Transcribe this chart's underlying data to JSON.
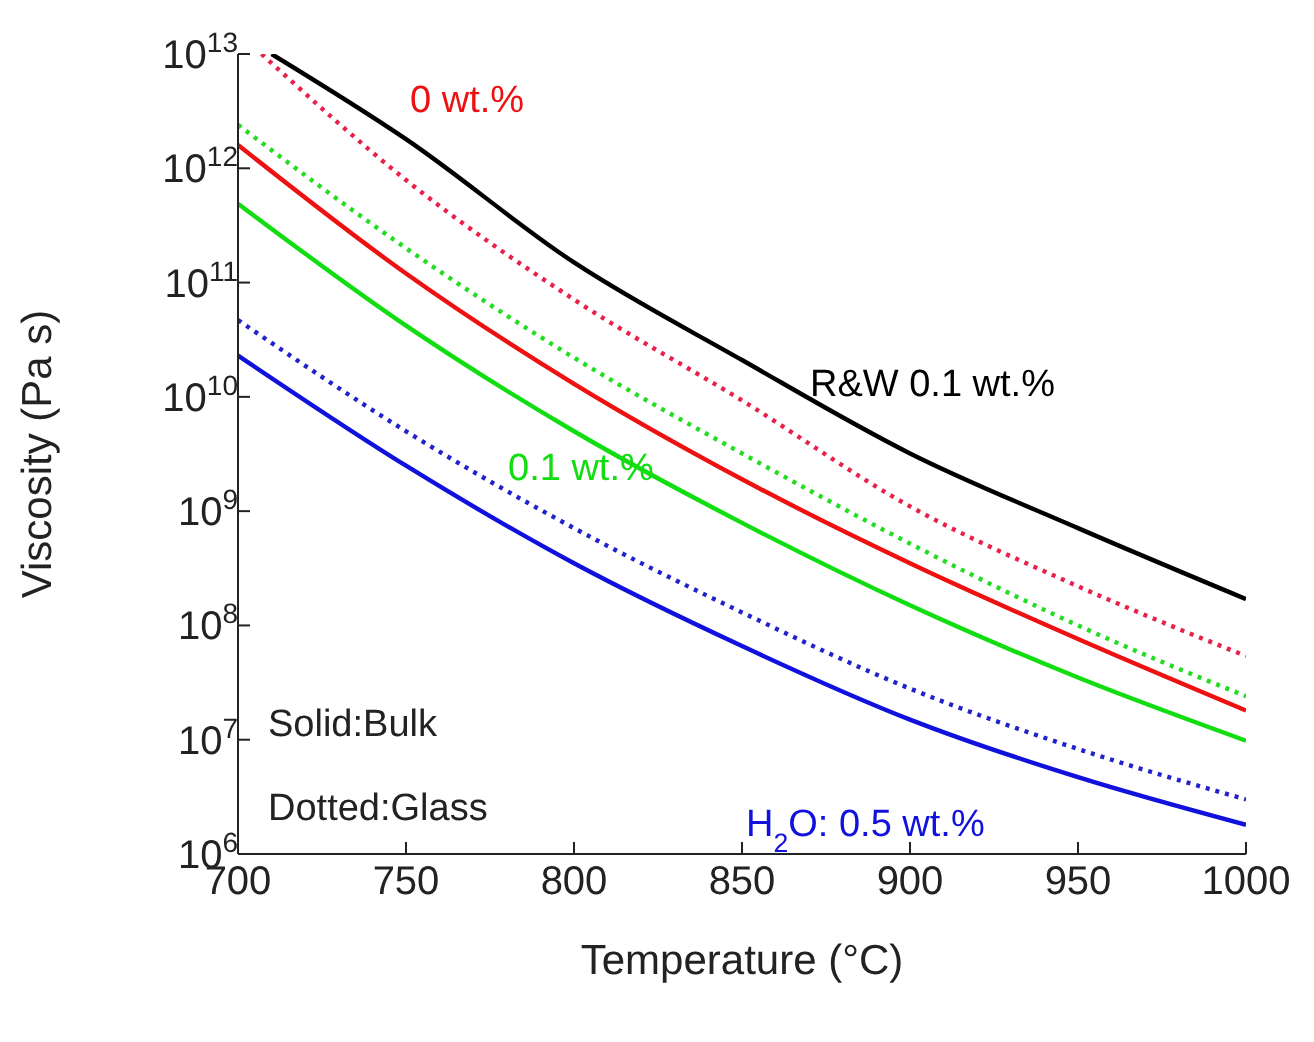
{
  "chart_data": {
    "type": "line",
    "xlabel": "Temperature (°C)",
    "ylabel": "Viscosity (Pa s)",
    "log": "y",
    "xlim": [
      700,
      1000
    ],
    "xticks": [
      700,
      750,
      800,
      850,
      900,
      950,
      1000
    ],
    "ylim": [
      1000000.0,
      10000000000000.0
    ],
    "yticks": [
      {
        "value": 1000000.0,
        "label": "10$^{6}$"
      },
      {
        "value": 10000000.0,
        "label": "10$^{7}$"
      },
      {
        "value": 100000000.0,
        "label": "10$^{8}$"
      },
      {
        "value": 1000000000.0,
        "label": "10$^{9}$"
      },
      {
        "value": 10000000000.0,
        "label": "10$^{10}$"
      },
      {
        "value": 100000000000.0,
        "label": "10$^{11}$"
      },
      {
        "value": 1000000000000.0,
        "label": "10$^{12}$"
      },
      {
        "value": 10000000000000.0,
        "label": "10$^{13}$"
      }
    ],
    "marker": "none",
    "series": [
      {
        "color": "#000000",
        "line_style": "solid",
        "x": [
          710,
          750,
          800,
          850,
          900,
          950,
          1000
        ],
        "values": [
          10000000000000.0,
          1800000000000.0,
          150000000000.0,
          21000000000.0,
          3200000000.0,
          710000000.0,
          170000000.0
        ]
      },
      {
        "color": "#e8204a",
        "line_style": "dotted",
        "x": [
          707,
          750,
          800,
          850,
          900,
          950,
          1000
        ],
        "values": [
          10000000000000.0,
          790000000000.0,
          71000000000.0,
          9300000000.0,
          1100000000.0,
          220000000.0,
          54000000.0
        ]
      },
      {
        "color": "#22dd22",
        "line_style": "dotted",
        "x": [
          700,
          750,
          800,
          850,
          900,
          950,
          1000
        ],
        "values": [
          2400000000000.0,
          200000000000.0,
          22000000000.0,
          3200000000.0,
          520000000.0,
          100000000.0,
          24000000.0
        ]
      },
      {
        "color": "#ee1111",
        "line_style": "solid",
        "x": [
          700,
          750,
          800,
          850,
          900,
          950,
          1000
        ],
        "values": [
          1600000000000.0,
          120000000000.0,
          13000000000.0,
          1900000000.0,
          350000000.0,
          76000000.0,
          18000000.0
        ]
      },
      {
        "color": "#11dd11",
        "line_style": "solid",
        "x": [
          700,
          750,
          800,
          850,
          900,
          950,
          1000
        ],
        "values": [
          490000000000.0,
          42000000000.0,
          5000000000.0,
          790000000.0,
          150000000.0,
          35000000.0,
          9800000.0
        ]
      },
      {
        "color": "#2222cc",
        "line_style": "dotted",
        "x": [
          700,
          750,
          800,
          850,
          900,
          950,
          1000
        ],
        "values": [
          47000000000.0,
          5000000000.0,
          710000000.0,
          130000000.0,
          28000000.0,
          8300000.0,
          3000000.0
        ]
      },
      {
        "color": "#1111dd",
        "line_style": "solid",
        "x": [
          700,
          750,
          800,
          850,
          900,
          950,
          1000
        ],
        "values": [
          23000000000.0,
          2500000000.0,
          350000000.0,
          66000000.0,
          15000000.0,
          4700000.0,
          1800000.0
        ]
      }
    ],
    "annotations": [
      "0 wt.%",
      "R&W 0.1 wt.%",
      "0.1 wt.%",
      "H$_{2}$O: 0.5 wt.%",
      "Solid:Bulk",
      "Dotted:Glass"
    ]
  }
}
